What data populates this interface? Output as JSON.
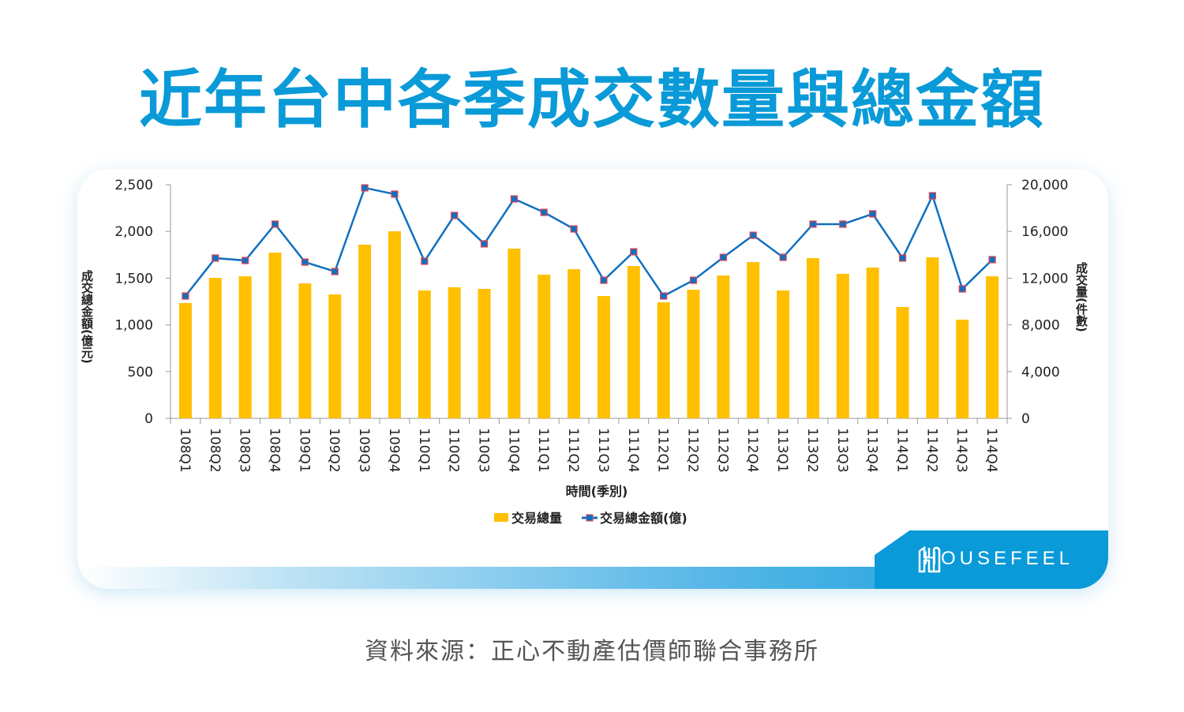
{
  "title": "近年台中各季成交數量與總金額",
  "source": "資料來源：正心不動產估價師聯合事務所",
  "logo": "HOUSEFEEL",
  "colors": {
    "title": "#0a9ad8",
    "bar": "#ffc000",
    "line": "#0f70c0",
    "marker_border": "#e8434f"
  },
  "chart_data": {
    "type": "bar+line",
    "xlabel": "時間(季別)",
    "ylabel_left": "成交總金額(億元)",
    "ylabel_right": "成交量(件數)",
    "ylim_left": [
      0,
      2500
    ],
    "ylim_right": [
      0,
      20000
    ],
    "yticks_left": [
      "0",
      "500",
      "1,000",
      "1,500",
      "2,000",
      "2,500"
    ],
    "yticks_right": [
      "0",
      "4,000",
      "8,000",
      "12,000",
      "16,000",
      "20,000"
    ],
    "grid": false,
    "legend_position": "bottom",
    "categories": [
      "108Q1",
      "108Q2",
      "108Q3",
      "108Q4",
      "109Q1",
      "109Q2",
      "109Q3",
      "109Q4",
      "110Q1",
      "110Q2",
      "110Q3",
      "110Q4",
      "111Q1",
      "111Q2",
      "111Q3",
      "111Q4",
      "112Q1",
      "112Q2",
      "112Q3",
      "112Q4",
      "113Q1",
      "113Q2",
      "113Q3",
      "113Q4",
      "114Q1",
      "114Q2",
      "114Q3",
      "114Q4"
    ],
    "series": [
      {
        "name": "交易總量",
        "type": "bar",
        "axis": "right",
        "values": [
          9870,
          12030,
          12160,
          14190,
          11550,
          10610,
          14870,
          16010,
          10950,
          11220,
          11080,
          14530,
          12300,
          12770,
          10470,
          13040,
          9930,
          11010,
          12230,
          13380,
          10950,
          13720,
          12370,
          12910,
          9530,
          13780,
          8450,
          12160
        ]
      },
      {
        "name": "交易總金額(億)",
        "type": "line",
        "axis": "left",
        "values": [
          1309,
          1715,
          1689,
          2078,
          1672,
          1571,
          2466,
          2399,
          1681,
          2171,
          1867,
          2348,
          2204,
          2027,
          1478,
          1782,
          1309,
          1478,
          1723,
          1959,
          1723,
          2078,
          2078,
          2188,
          1715,
          2382,
          1385,
          1698
        ]
      }
    ]
  }
}
